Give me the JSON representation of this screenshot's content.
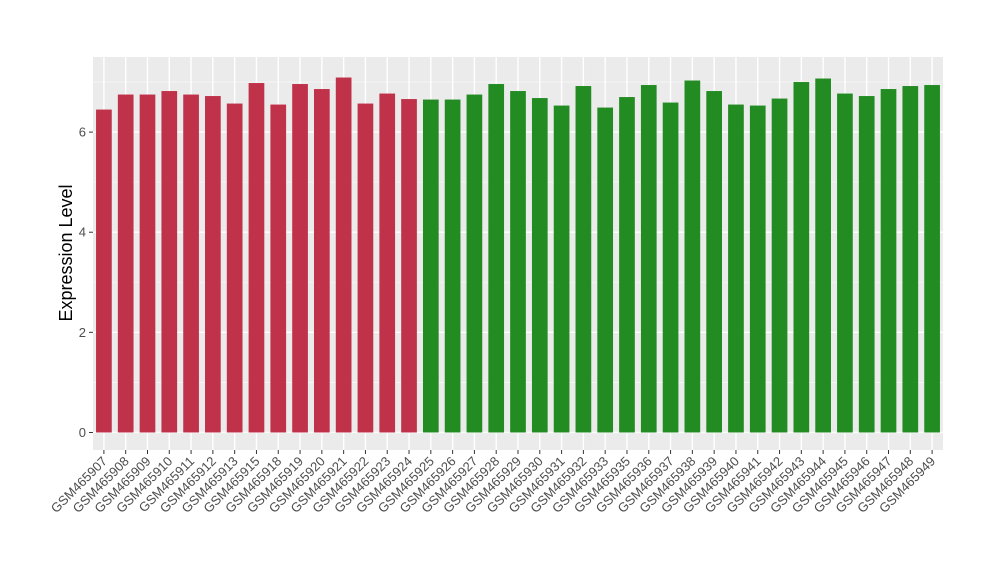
{
  "chart_data": {
    "type": "bar",
    "title": "",
    "xlabel": "",
    "ylabel": "Expression Level",
    "ylim": [
      -0.35,
      7.5
    ],
    "yticks": [
      0,
      2,
      4,
      6
    ],
    "grid": true,
    "panel_background": "#ebebeb",
    "categories": [
      "GSM465907",
      "GSM465908",
      "GSM465909",
      "GSM465910",
      "GSM465911",
      "GSM465912",
      "GSM465913",
      "GSM465915",
      "GSM465918",
      "GSM465919",
      "GSM465920",
      "GSM465921",
      "GSM465922",
      "GSM465923",
      "GSM465924",
      "GSM465925",
      "GSM465926",
      "GSM465927",
      "GSM465928",
      "GSM465929",
      "GSM465930",
      "GSM465931",
      "GSM465932",
      "GSM465933",
      "GSM465935",
      "GSM465936",
      "GSM465937",
      "GSM465938",
      "GSM465939",
      "GSM465940",
      "GSM465941",
      "GSM465942",
      "GSM465943",
      "GSM465944",
      "GSM465945",
      "GSM465946",
      "GSM465947",
      "GSM465948",
      "GSM465949"
    ],
    "values": [
      6.45,
      6.75,
      6.75,
      6.82,
      6.75,
      6.72,
      6.57,
      6.98,
      6.55,
      6.96,
      6.86,
      7.09,
      6.57,
      6.77,
      6.66,
      6.65,
      6.65,
      6.75,
      6.96,
      6.82,
      6.68,
      6.53,
      6.92,
      6.49,
      6.7,
      6.94,
      6.59,
      7.03,
      6.82,
      6.55,
      6.53,
      6.67,
      7.0,
      7.07,
      6.77,
      6.72,
      6.86,
      6.92,
      6.94
    ],
    "colors": [
      "#c0314a",
      "#c0314a",
      "#c0314a",
      "#c0314a",
      "#c0314a",
      "#c0314a",
      "#c0314a",
      "#c0314a",
      "#c0314a",
      "#c0314a",
      "#c0314a",
      "#c0314a",
      "#c0314a",
      "#c0314a",
      "#c0314a",
      "#228b22",
      "#228b22",
      "#228b22",
      "#228b22",
      "#228b22",
      "#228b22",
      "#228b22",
      "#228b22",
      "#228b22",
      "#228b22",
      "#228b22",
      "#228b22",
      "#228b22",
      "#228b22",
      "#228b22",
      "#228b22",
      "#228b22",
      "#228b22",
      "#228b22",
      "#228b22",
      "#228b22",
      "#228b22",
      "#228b22",
      "#228b22"
    ]
  }
}
